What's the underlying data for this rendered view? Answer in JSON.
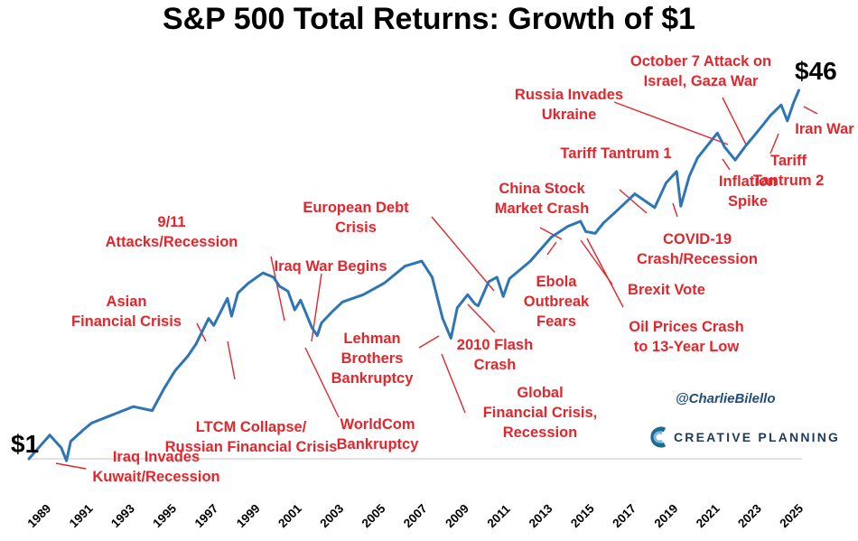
{
  "chart_data": {
    "type": "line",
    "title": "S&P 500 Total Returns: Growth of $1",
    "xlabel": "",
    "ylabel": "",
    "x_ticks": [
      "1989",
      "1991",
      "1993",
      "1995",
      "1997",
      "1999",
      "2001",
      "2003",
      "2005",
      "2007",
      "2009",
      "2011",
      "2013",
      "2015",
      "2017",
      "2019",
      "2021",
      "2023",
      "2025"
    ],
    "start_label": "$1",
    "end_label": "$46",
    "series": [
      {
        "color": "#2e75b6",
        "points": [
          [
            1989.0,
            1.0
          ],
          [
            1990.0,
            1.28
          ],
          [
            1990.55,
            1.12
          ],
          [
            1990.8,
            0.98
          ],
          [
            1991.0,
            1.2
          ],
          [
            1991.6,
            1.35
          ],
          [
            1992.0,
            1.45
          ],
          [
            1993.0,
            1.58
          ],
          [
            1994.0,
            1.72
          ],
          [
            1994.9,
            1.65
          ],
          [
            1995.5,
            2.1
          ],
          [
            1996.0,
            2.5
          ],
          [
            1996.6,
            2.9
          ],
          [
            1997.0,
            3.3
          ],
          [
            1997.6,
            4.3
          ],
          [
            1997.85,
            4.0
          ],
          [
            1998.5,
            5.3
          ],
          [
            1998.7,
            4.4
          ],
          [
            1999.0,
            5.6
          ],
          [
            1999.5,
            6.2
          ],
          [
            2000.2,
            6.9
          ],
          [
            2000.7,
            6.6
          ],
          [
            2001.0,
            6.0
          ],
          [
            2001.4,
            5.7
          ],
          [
            2001.72,
            4.7
          ],
          [
            2002.0,
            5.2
          ],
          [
            2002.55,
            3.9
          ],
          [
            2002.8,
            3.6
          ],
          [
            2003.0,
            4.1
          ],
          [
            2003.5,
            4.6
          ],
          [
            2004.0,
            5.1
          ],
          [
            2005.0,
            5.5
          ],
          [
            2006.0,
            6.2
          ],
          [
            2007.0,
            7.4
          ],
          [
            2007.8,
            7.8
          ],
          [
            2008.3,
            6.6
          ],
          [
            2008.8,
            4.3
          ],
          [
            2009.2,
            3.5
          ],
          [
            2009.5,
            4.8
          ],
          [
            2010.0,
            5.5
          ],
          [
            2010.35,
            5.0
          ],
          [
            2010.5,
            4.9
          ],
          [
            2011.0,
            6.3
          ],
          [
            2011.4,
            6.6
          ],
          [
            2011.7,
            5.4
          ],
          [
            2012.0,
            6.5
          ],
          [
            2013.0,
            7.8
          ],
          [
            2014.0,
            10.0
          ],
          [
            2014.8,
            11.2
          ],
          [
            2015.4,
            11.8
          ],
          [
            2015.65,
            10.6
          ],
          [
            2016.1,
            10.4
          ],
          [
            2016.5,
            11.6
          ],
          [
            2017.0,
            12.8
          ],
          [
            2018.0,
            15.7
          ],
          [
            2018.95,
            13.6
          ],
          [
            2019.5,
            17.6
          ],
          [
            2020.0,
            19.8
          ],
          [
            2020.2,
            13.8
          ],
          [
            2020.6,
            18.8
          ],
          [
            2021.0,
            22.8
          ],
          [
            2021.95,
            29.5
          ],
          [
            2022.3,
            25.5
          ],
          [
            2022.8,
            22.3
          ],
          [
            2023.3,
            25.8
          ],
          [
            2023.75,
            29.0
          ],
          [
            2024.0,
            31.0
          ],
          [
            2024.5,
            35.5
          ],
          [
            2025.0,
            39.5
          ],
          [
            2025.3,
            33.5
          ],
          [
            2025.6,
            40.5
          ],
          [
            2025.85,
            46.0
          ]
        ]
      }
    ],
    "annotations": [
      [
        "Iraq Invades",
        "Kuwait/Recession"
      ],
      [
        "Asian",
        "Financial Crisis"
      ],
      [
        "LTCM Collapse/",
        "Russian Financial Crisis"
      ],
      [
        "9/11",
        "Attacks/Recession"
      ],
      [
        "Iraq War Begins"
      ],
      [
        "WorldCom",
        "Bankruptcy"
      ],
      [
        "Lehman",
        "Brothers",
        "Bankruptcy"
      ],
      [
        "European Debt",
        "Crisis"
      ],
      [
        "2010 Flash",
        "Crash"
      ],
      [
        "Global",
        "Financial Crisis,",
        "Recession"
      ],
      [
        "China Stock",
        "Market Crash"
      ],
      [
        "Ebola",
        "Outbreak",
        "Fears"
      ],
      [
        "Oil Prices Crash",
        "to 13-Year Low"
      ],
      [
        "Brexit Vote"
      ],
      [
        "Tariff Tantrum 1"
      ],
      [
        "COVID-19",
        "Crash/Recession"
      ],
      [
        "Russia Invades",
        "Ukraine"
      ],
      [
        "Inflation",
        "Spike"
      ],
      [
        "October 7 Attack on",
        "Israel, Gaza War"
      ],
      [
        "Tariff",
        "Tantrum 2"
      ],
      [
        "Iran War"
      ]
    ],
    "colors": {
      "line": "#2e75b6",
      "annotation": "#e2262c",
      "axis": "#d9d9d9"
    }
  },
  "branding": {
    "handle": "@CharlieBilello",
    "company": "CREATIVE PLANNING"
  }
}
